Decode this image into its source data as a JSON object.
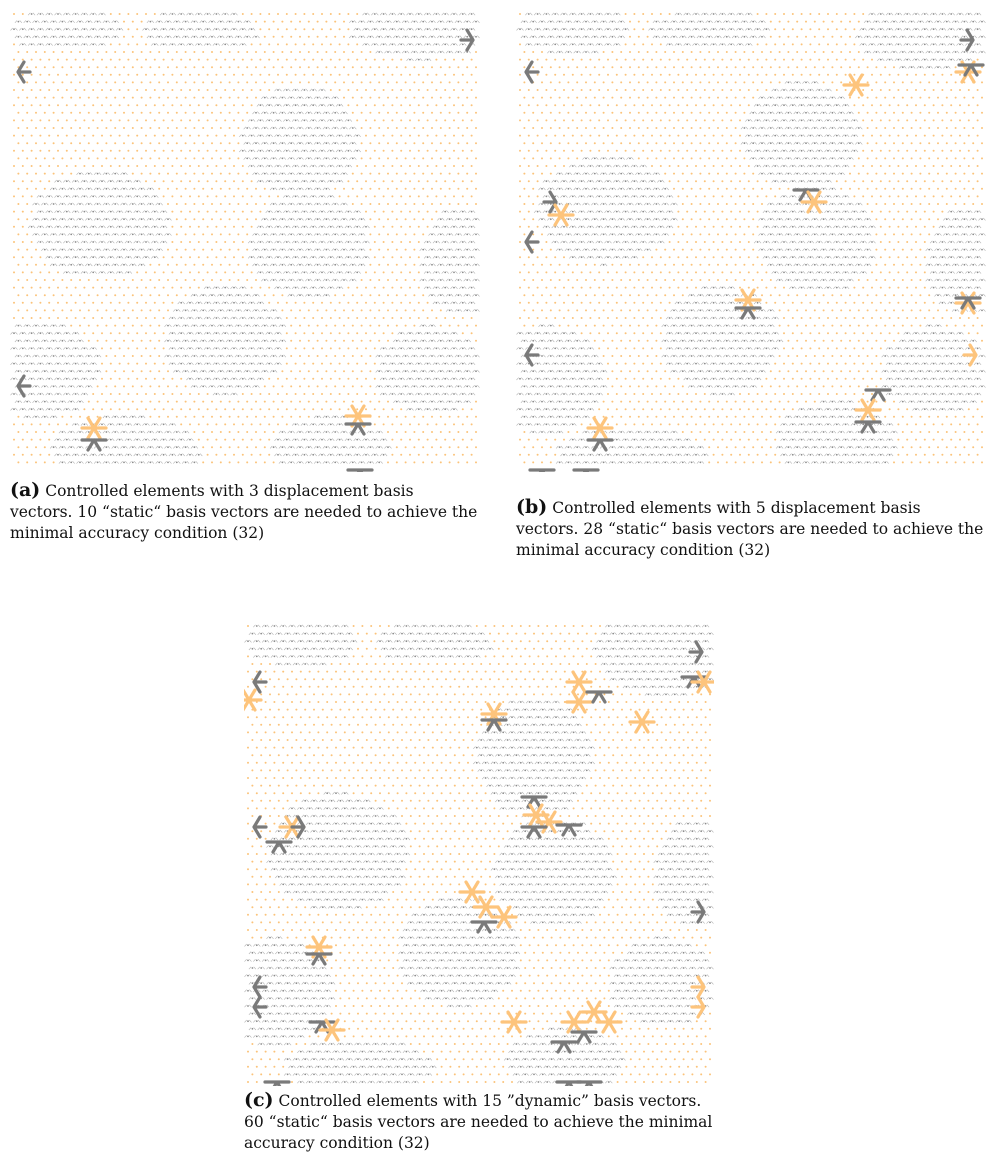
{
  "figure": {
    "colors": {
      "grey": "#7a7a7a",
      "orange": "#fdc47c",
      "grey_dot": "#8c8c8c",
      "orange_dot": "#fbc37a"
    },
    "panels": [
      {
        "id": "a",
        "label": "(a)",
        "caption": "Controlled elements with 3 displacement basis vectors. 10 “static“ basis vectors are needed to achieve the minimal accuracy condition (32)"
      },
      {
        "id": "b",
        "label": "(b)",
        "caption": "Controlled elements with 5 displacement basis vectors. 28 “static“ basis vectors are needed to achieve the minimal accuracy condition (32)"
      },
      {
        "id": "c",
        "label": "(c)",
        "caption": "Controlled elements with 15 ”dynamic” basis vectors. 60 “static“ basis vectors are needed to achieve the minimal accuracy condition (32)"
      }
    ]
  }
}
